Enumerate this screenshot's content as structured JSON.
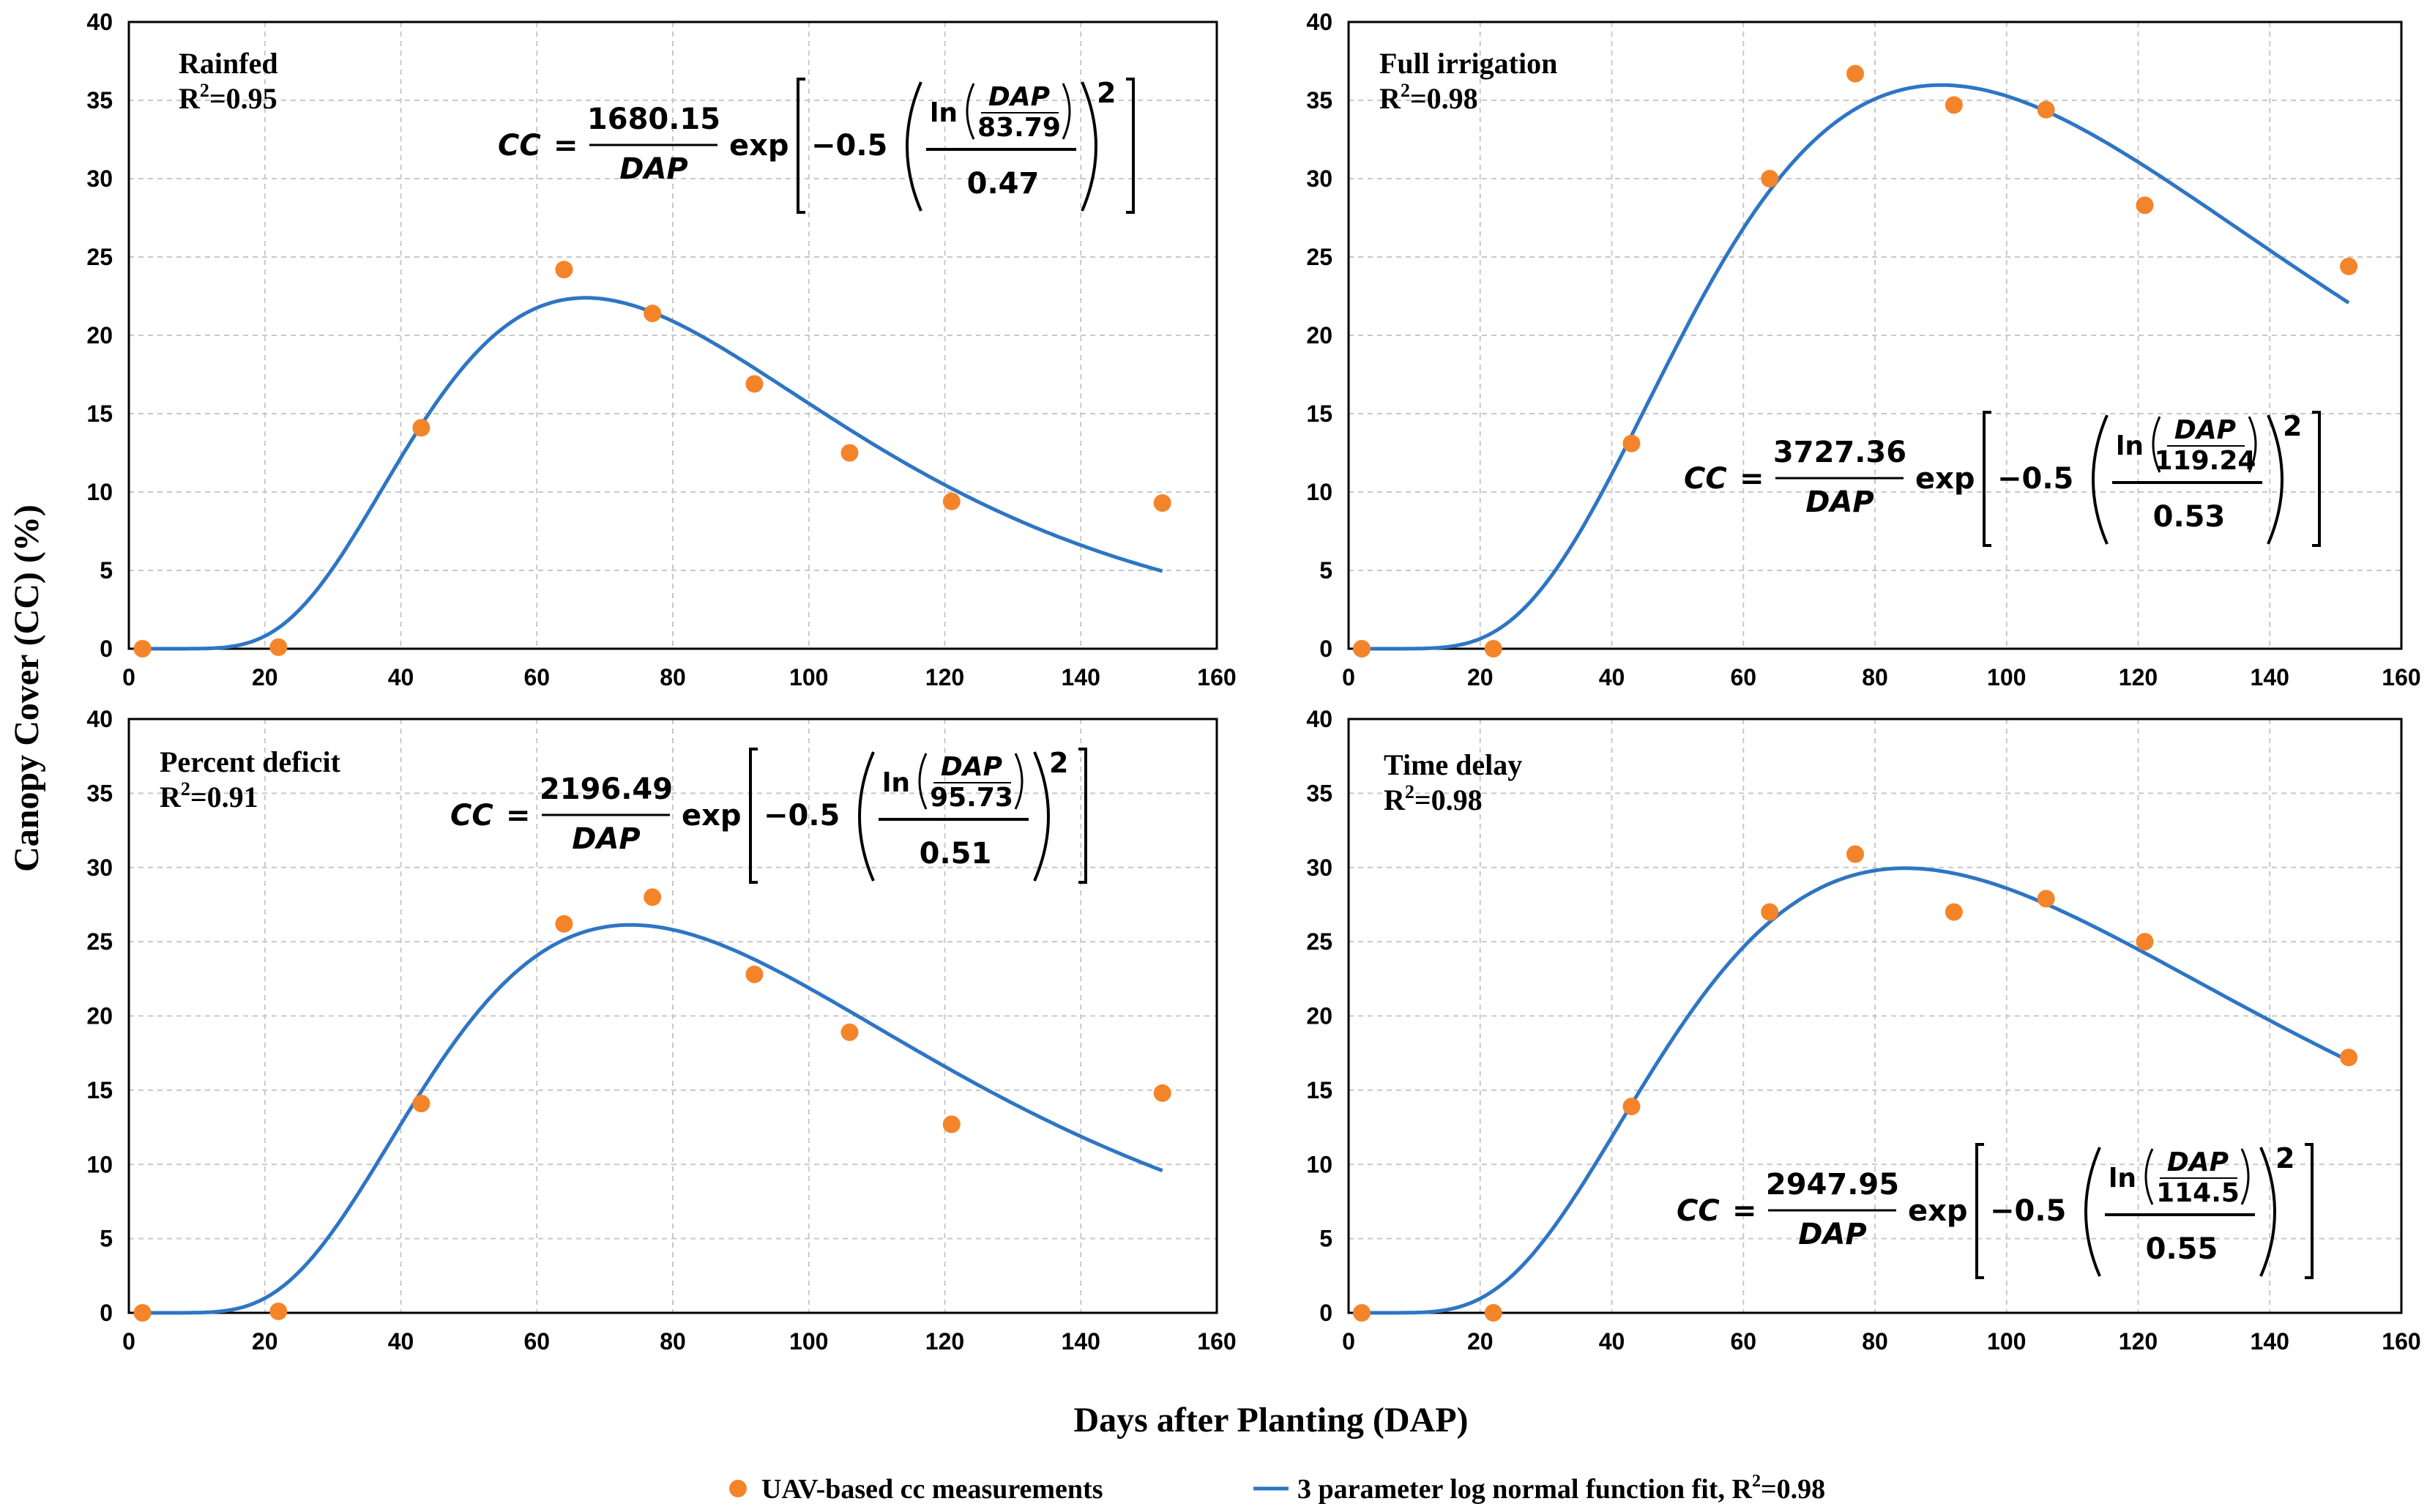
{
  "figure": {
    "ylabel": "Canopy Cover (CC) (%)",
    "xlabel": "Days after Planting (DAP)",
    "legend": {
      "scatter_label": "UAV-based cc measurements",
      "line_label_prefix": "3 parameter log normal function fit, R",
      "line_label_sup": "2",
      "line_label_suffix": "=0.98"
    },
    "colors": {
      "points": "#f4842a",
      "line": "#2e75c4",
      "grid": "#c8c8c8",
      "frame": "#000000"
    }
  },
  "chart_data": [
    {
      "type": "scatter",
      "title": "Rainfed",
      "r2_prefix": "R",
      "r2_sup": "2",
      "r2_suffix": "=0.95",
      "x": [
        2,
        22,
        43,
        64,
        77,
        92,
        106,
        121,
        152
      ],
      "y": [
        0,
        0.1,
        14.1,
        24.2,
        21.4,
        16.9,
        12.5,
        9.4,
        9.3
      ],
      "fit": {
        "a": 1680.15,
        "b": 83.79,
        "c": 0.47,
        "x_end": 152
      },
      "equation": {
        "lhs": "CC",
        "eq": "=",
        "num": "1680.15",
        "den": "DAP",
        "exp": "exp",
        "neg": "−0.5",
        "ln": "ln",
        "ln_num": "DAP",
        "ln_den": "83.79",
        "c": "0.47",
        "pow": "2"
      },
      "xlim": [
        0,
        160
      ],
      "ylim": [
        0,
        40
      ],
      "xticks": [
        "0",
        "20",
        "40",
        "60",
        "80",
        "100",
        "120",
        "140",
        "160"
      ],
      "yticks": [
        "0",
        "5",
        "10",
        "15",
        "20",
        "25",
        "30",
        "35",
        "40"
      ]
    },
    {
      "type": "scatter",
      "title": "Full irrigation",
      "r2_prefix": "R",
      "r2_sup": "2",
      "r2_suffix": "=0.98",
      "x": [
        2,
        22,
        43,
        64,
        77,
        92,
        106,
        121,
        152
      ],
      "y": [
        0,
        0,
        13.1,
        30.0,
        36.7,
        34.7,
        34.4,
        28.3,
        24.4
      ],
      "fit": {
        "a": 3727.36,
        "b": 119.24,
        "c": 0.53,
        "x_end": 152
      },
      "equation": {
        "lhs": "CC",
        "eq": "=",
        "num": "3727.36",
        "den": "DAP",
        "exp": "exp",
        "neg": "−0.5",
        "ln": "ln",
        "ln_num": "DAP",
        "ln_den": "119.24",
        "c": "0.53",
        "pow": "2"
      },
      "xlim": [
        0,
        160
      ],
      "ylim": [
        0,
        40
      ],
      "xticks": [
        "0",
        "20",
        "40",
        "60",
        "80",
        "100",
        "120",
        "140",
        "160"
      ],
      "yticks": [
        "0",
        "5",
        "10",
        "15",
        "20",
        "25",
        "30",
        "35",
        "40"
      ]
    },
    {
      "type": "scatter",
      "title": "Percent deficit",
      "r2_prefix": "R",
      "r2_sup": "2",
      "r2_suffix": "=0.91",
      "x": [
        2,
        22,
        43,
        64,
        77,
        92,
        106,
        121,
        152
      ],
      "y": [
        0,
        0.1,
        14.1,
        26.2,
        28.0,
        22.8,
        18.9,
        12.7,
        14.8
      ],
      "fit": {
        "a": 2196.49,
        "b": 95.73,
        "c": 0.51,
        "x_end": 152
      },
      "equation": {
        "lhs": "CC",
        "eq": "=",
        "num": "2196.49",
        "den": "DAP",
        "exp": "exp",
        "neg": "−0.5",
        "ln": "ln",
        "ln_num": "DAP",
        "ln_den": "95.73",
        "c": "0.51",
        "pow": "2"
      },
      "xlim": [
        0,
        160
      ],
      "ylim": [
        0,
        40
      ],
      "xticks": [
        "0",
        "20",
        "40",
        "60",
        "80",
        "100",
        "120",
        "140",
        "160"
      ],
      "yticks": [
        "0",
        "5",
        "10",
        "15",
        "20",
        "25",
        "30",
        "35",
        "40"
      ]
    },
    {
      "type": "scatter",
      "title": "Time delay",
      "r2_prefix": "R",
      "r2_sup": "2",
      "r2_suffix": "=0.98",
      "x": [
        2,
        22,
        43,
        64,
        77,
        92,
        106,
        121,
        152
      ],
      "y": [
        0,
        0,
        13.9,
        27.0,
        30.9,
        27.0,
        27.9,
        25.0,
        17.2
      ],
      "fit": {
        "a": 2947.95,
        "b": 114.5,
        "c": 0.55,
        "x_end": 152
      },
      "equation": {
        "lhs": "CC",
        "eq": "=",
        "num": "2947.95",
        "den": "DAP",
        "exp": "exp",
        "neg": "−0.5",
        "ln": "ln",
        "ln_num": "DAP",
        "ln_den": "114.5",
        "c": "0.55",
        "pow": "2"
      },
      "xlim": [
        0,
        160
      ],
      "ylim": [
        0,
        40
      ],
      "xticks": [
        "0",
        "20",
        "40",
        "60",
        "80",
        "100",
        "120",
        "140",
        "160"
      ],
      "yticks": [
        "0",
        "5",
        "10",
        "15",
        "20",
        "25",
        "30",
        "35",
        "40"
      ]
    }
  ]
}
